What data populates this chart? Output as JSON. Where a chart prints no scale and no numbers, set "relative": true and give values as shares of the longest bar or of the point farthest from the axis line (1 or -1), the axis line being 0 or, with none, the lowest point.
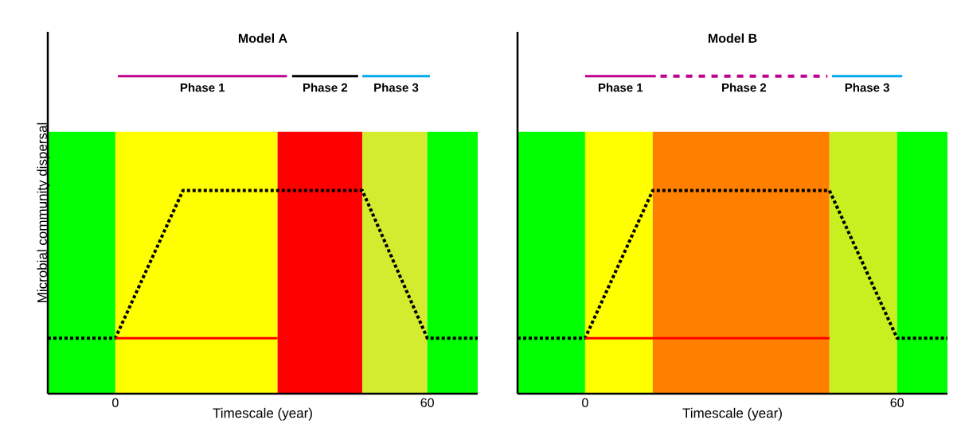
{
  "chart_data": [
    {
      "type": "line",
      "title": "Model A",
      "xlabel": "Timescale (year)",
      "ylabel": "Microbial community dispersal",
      "relative": true,
      "xlim": [
        -13,
        69.7
      ],
      "xticks": [
        0,
        60
      ],
      "bands": [
        {
          "axis": "x",
          "from": -13,
          "to": 0,
          "color": "#00ff00"
        },
        {
          "axis": "x",
          "from": 0,
          "to": 31.2,
          "color": "#ffff00"
        },
        {
          "axis": "x",
          "from": 31.2,
          "to": 47.5,
          "color": "#ff0000"
        },
        {
          "axis": "x",
          "from": 47.5,
          "to": 60,
          "color": "#d4ec30"
        },
        {
          "axis": "x",
          "from": 60,
          "to": 69.7,
          "color": "#00ff00"
        }
      ],
      "series": [
        {
          "color": "#000000",
          "line_style": "dotted",
          "x": [
            -13,
            0,
            13,
            47.5,
            60,
            69.7
          ],
          "values": [
            0.175,
            0.175,
            0.64,
            0.64,
            0.175,
            0.175
          ]
        },
        {
          "color": "#ff0000",
          "line_style": "solid",
          "x": [
            0,
            31.2
          ],
          "values": [
            0.175,
            0.175
          ]
        },
        {
          "name": "Phase 1",
          "color": "#c0008c",
          "line_style": "solid",
          "x": [
            0.5,
            33
          ],
          "values": [
            1,
            1
          ]
        },
        {
          "name": "Phase 2",
          "color": "#000000",
          "line_style": "solid",
          "x": [
            34,
            46.7
          ],
          "values": [
            1,
            1
          ]
        },
        {
          "name": "Phase 3",
          "color": "#00aaee",
          "line_style": "solid",
          "x": [
            47.5,
            60.5
          ],
          "values": [
            1,
            1
          ]
        }
      ],
      "marker": "none"
    },
    {
      "type": "line",
      "title": "Model B",
      "xlabel": "Timescale (year)",
      "relative": true,
      "xlim": [
        -13,
        69.7
      ],
      "xticks": [
        0,
        60
      ],
      "bands": [
        {
          "axis": "x",
          "from": -13,
          "to": 0,
          "color": "#00ff00"
        },
        {
          "axis": "x",
          "from": 0,
          "to": 13,
          "color": "#ffff00"
        },
        {
          "axis": "x",
          "from": 13,
          "to": 47,
          "color": "#ff8000"
        },
        {
          "axis": "x",
          "from": 47,
          "to": 60,
          "color": "#c8f020"
        },
        {
          "axis": "x",
          "from": 60,
          "to": 69.7,
          "color": "#00ff00"
        }
      ],
      "series": [
        {
          "color": "#000000",
          "line_style": "dotted",
          "x": [
            -13,
            0,
            13,
            47,
            60,
            69.7
          ],
          "values": [
            0.175,
            0.175,
            0.64,
            0.64,
            0.175,
            0.175
          ]
        },
        {
          "color": "#ff0000",
          "line_style": "solid",
          "x": [
            0,
            47
          ],
          "values": [
            0.175,
            0.175
          ]
        },
        {
          "name": "Phase 1",
          "color": "#c0008c",
          "line_style": "solid",
          "x": [
            0,
            13.6
          ],
          "values": [
            1,
            1
          ]
        },
        {
          "name": "Phase 2",
          "color": "#c0008c",
          "line_style": "dashed",
          "x": [
            14.5,
            46.6
          ],
          "values": [
            1,
            1
          ]
        },
        {
          "name": "Phase 3",
          "color": "#00aaee",
          "line_style": "solid",
          "x": [
            47.5,
            61
          ],
          "values": [
            1,
            1
          ]
        }
      ],
      "marker": "none"
    }
  ]
}
